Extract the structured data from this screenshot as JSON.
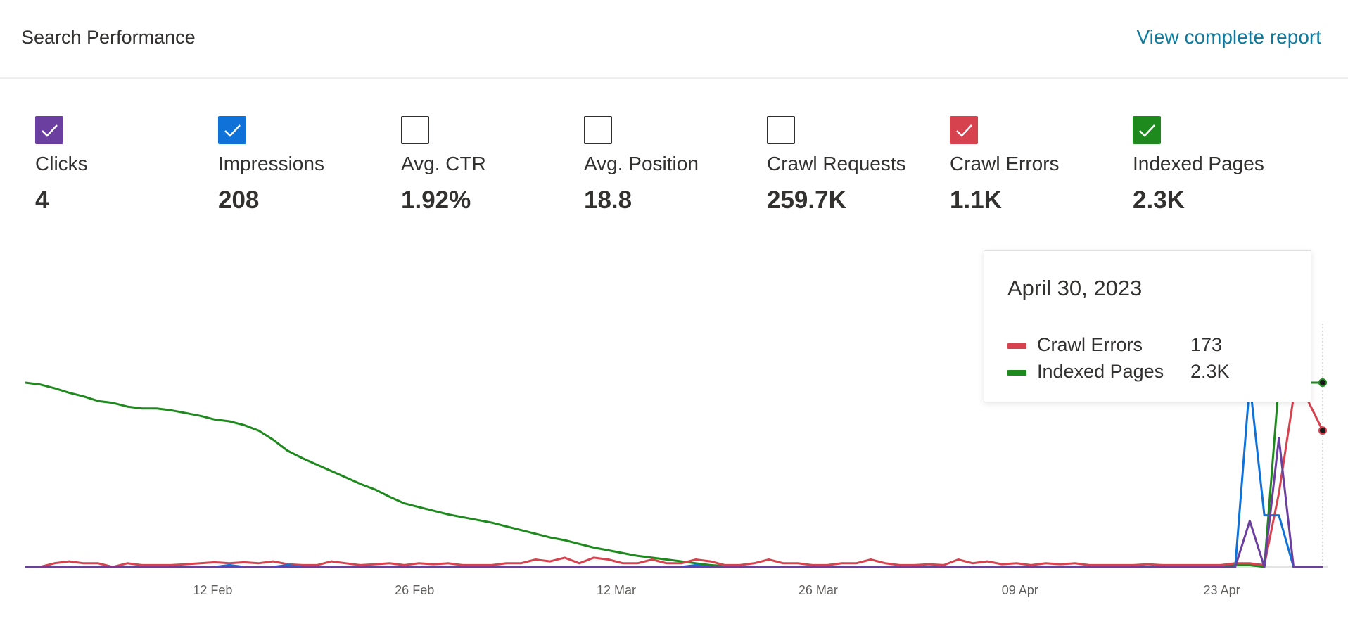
{
  "header": {
    "title": "Search Performance",
    "link_label": "View complete report"
  },
  "colors": {
    "clicks": "#6b3fa0",
    "impressions": "#0f72d8",
    "crawl_errors": "#d7424f",
    "indexed_pages": "#1e8a1e",
    "link": "#0e7a9e"
  },
  "metrics": [
    {
      "label": "Clicks",
      "value": "4",
      "checked": true,
      "color": "#6b3fa0"
    },
    {
      "label": "Impressions",
      "value": "208",
      "checked": true,
      "color": "#0f72d8"
    },
    {
      "label": "Avg. CTR",
      "value": "1.92%",
      "checked": false,
      "color": ""
    },
    {
      "label": "Avg. Position",
      "value": "18.8",
      "checked": false,
      "color": ""
    },
    {
      "label": "Crawl Requests",
      "value": "259.7K",
      "checked": false,
      "color": ""
    },
    {
      "label": "Crawl Errors",
      "value": "1.1K",
      "checked": true,
      "color": "#d7424f"
    },
    {
      "label": "Indexed Pages",
      "value": "2.3K",
      "checked": true,
      "color": "#1e8a1e"
    }
  ],
  "tooltip": {
    "date": "April 30, 2023",
    "rows": [
      {
        "name": "Crawl Errors",
        "value": "173",
        "color": "#d7424f"
      },
      {
        "name": "Indexed Pages",
        "value": "2.3K",
        "color": "#1e8a1e"
      }
    ]
  },
  "chart_data": {
    "type": "line",
    "x_start": "2023-01-30",
    "x_end": "2023-04-30",
    "x_ticks": [
      "12 Feb",
      "26 Feb",
      "12 Mar",
      "26 Mar",
      "09 Apr",
      "23 Apr"
    ],
    "grid": false,
    "series": [
      {
        "name": "Indexed Pages",
        "color": "#1e8a1e",
        "values": [
          1.0,
          0.99,
          0.97,
          0.945,
          0.925,
          0.9,
          0.89,
          0.87,
          0.86,
          0.86,
          0.85,
          0.835,
          0.82,
          0.8,
          0.79,
          0.77,
          0.74,
          0.69,
          0.63,
          0.59,
          0.555,
          0.52,
          0.485,
          0.45,
          0.42,
          0.38,
          0.345,
          0.325,
          0.305,
          0.285,
          0.27,
          0.255,
          0.24,
          0.22,
          0.2,
          0.18,
          0.16,
          0.145,
          0.125,
          0.105,
          0.09,
          0.075,
          0.06,
          0.05,
          0.04,
          0.03,
          0.02,
          0.01,
          0.005,
          0,
          0,
          0,
          0,
          0,
          0,
          0,
          0,
          0,
          0,
          0,
          0,
          0,
          0,
          0,
          0,
          0,
          0,
          0,
          0,
          0,
          0,
          0,
          0,
          0,
          0,
          0,
          0,
          0,
          0,
          0,
          0,
          0,
          0,
          0.01,
          0.01,
          0,
          1.0,
          1.0,
          1.0,
          1.0
        ]
      },
      {
        "name": "Crawl Errors",
        "color": "#d7424f",
        "values": [
          0,
          0,
          0.02,
          0.03,
          0.02,
          0.02,
          0,
          0.02,
          0.01,
          0.01,
          0.01,
          0.015,
          0.02,
          0.025,
          0.02,
          0.025,
          0.02,
          0.03,
          0.015,
          0.01,
          0.01,
          0.03,
          0.02,
          0.01,
          0.015,
          0.02,
          0.01,
          0.02,
          0.015,
          0.02,
          0.01,
          0.01,
          0.01,
          0.02,
          0.02,
          0.04,
          0.03,
          0.05,
          0.02,
          0.05,
          0.04,
          0.02,
          0.02,
          0.04,
          0.02,
          0.02,
          0.04,
          0.03,
          0.01,
          0.01,
          0.02,
          0.04,
          0.02,
          0.02,
          0.01,
          0.01,
          0.02,
          0.02,
          0.04,
          0.02,
          0.01,
          0.01,
          0.015,
          0.01,
          0.04,
          0.02,
          0.03,
          0.015,
          0.02,
          0.01,
          0.02,
          0.015,
          0.02,
          0.01,
          0.01,
          0.01,
          0.01,
          0.015,
          0.01,
          0.01,
          0.01,
          0.01,
          0.01,
          0.02,
          0.02,
          0.01,
          0.4,
          0.92,
          0.9,
          0.74
        ]
      },
      {
        "name": "Impressions",
        "color": "#0f72d8",
        "values": [
          0,
          0,
          0,
          0,
          0,
          0,
          0,
          0,
          0,
          0,
          0,
          0,
          0,
          0,
          0.01,
          0,
          0,
          0,
          0.01,
          0,
          0,
          0,
          0,
          0,
          0,
          0,
          0,
          0,
          0,
          0,
          0,
          0,
          0,
          0,
          0,
          0,
          0,
          0,
          0,
          0,
          0,
          0,
          0,
          0,
          0,
          0,
          0.01,
          0,
          0,
          0,
          0,
          0,
          0,
          0,
          0,
          0,
          0,
          0,
          0,
          0,
          0,
          0,
          0,
          0,
          0,
          0,
          0,
          0,
          0,
          0,
          0,
          0,
          0,
          0,
          0,
          0,
          0,
          0,
          0,
          0,
          0,
          0,
          0,
          0,
          1.0,
          0.28,
          0.28,
          0,
          0,
          0
        ]
      },
      {
        "name": "Clicks",
        "color": "#6b3fa0",
        "values": [
          0,
          0,
          0,
          0,
          0,
          0,
          0,
          0,
          0,
          0,
          0,
          0,
          0,
          0,
          0,
          0,
          0,
          0,
          0,
          0,
          0,
          0,
          0,
          0,
          0,
          0,
          0,
          0,
          0,
          0,
          0,
          0,
          0,
          0,
          0,
          0,
          0,
          0,
          0,
          0,
          0,
          0,
          0,
          0,
          0,
          0,
          0,
          0,
          0,
          0,
          0,
          0,
          0,
          0,
          0,
          0,
          0,
          0,
          0,
          0,
          0,
          0,
          0,
          0,
          0,
          0,
          0,
          0,
          0,
          0,
          0,
          0,
          0,
          0,
          0,
          0,
          0,
          0,
          0,
          0,
          0,
          0,
          0,
          0,
          0.25,
          0,
          0.7,
          0,
          0,
          0
        ]
      }
    ]
  }
}
